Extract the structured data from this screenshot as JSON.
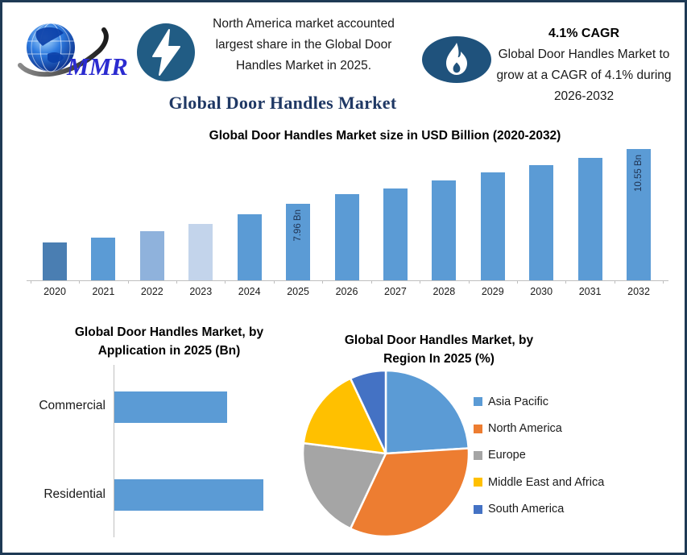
{
  "page_title": "Global Door Handles Market",
  "header": {
    "logo": {
      "text": "MMR"
    },
    "highlight": {
      "icon": "lightning-icon",
      "text": "North America market accounted largest share in the Global Door Handles Market in 2025."
    },
    "cagr": {
      "icon": "flame-icon",
      "title": "4.1% CAGR",
      "text": "Global Door Handles Market to grow at a CAGR of 4.1% during 2026-2032"
    }
  },
  "colors": {
    "border_navy": "#1E3A55",
    "icon_badge_blue": "#215C84",
    "flame_badge_blue": "#1F527C",
    "title_navy": "#1F3864",
    "bar_blue": "#5B9BD5",
    "axis_gray": "#BFBFBF",
    "logo_text_blue": "#2B2BD0"
  },
  "chart_data": [
    {
      "type": "bar",
      "title": "Global Door Handles Market size in USD Billion (2020-2032)",
      "ylabel": "USD Billion",
      "categories": [
        "2020",
        "2021",
        "2022",
        "2023",
        "2024",
        "2025",
        "2026",
        "2027",
        "2028",
        "2029",
        "2030",
        "2031",
        "2032"
      ],
      "values": [
        6.1,
        6.35,
        6.65,
        7.0,
        7.45,
        7.96,
        8.4,
        8.7,
        9.05,
        9.45,
        9.8,
        10.15,
        10.55
      ],
      "value_labels": {
        "2025": "7.96 Bn",
        "2032": "10.55 Bn"
      },
      "bar_colors": [
        "#4A7EB2",
        "#5B9BD5",
        "#8FB2DC",
        "#C3D4EB",
        "#5B9BD5",
        "#5B9BD5",
        "#5B9BD5",
        "#5B9BD5",
        "#5B9BD5",
        "#5B9BD5",
        "#5B9BD5",
        "#5B9BD5",
        "#5B9BD5"
      ],
      "axis": {
        "baseline_value": 4.3,
        "grid": false,
        "tick_labels_only": true
      }
    },
    {
      "type": "bar",
      "orientation": "horizontal",
      "title": "Global Door Handles Market, by Application in 2025 (Bn)",
      "categories": [
        "Commercial",
        "Residential"
      ],
      "values": [
        3.4,
        4.5
      ],
      "bar_color": "#5B9BD5",
      "axis": {
        "xmin": 0,
        "grid": false
      }
    },
    {
      "type": "pie",
      "title": "Global Door Handles Market, by Region In 2025 (%)",
      "labels": [
        "Asia Pacific",
        "North America",
        "Europe",
        "Middle East and Africa",
        "South America"
      ],
      "values": [
        24,
        33,
        20,
        16,
        7
      ],
      "colors": [
        "#5B9BD5",
        "#ED7D31",
        "#A5A5A5",
        "#FFC000",
        "#4472C4"
      ],
      "legend_position": "right",
      "start_angle": "top",
      "direction": "clockwise"
    }
  ]
}
